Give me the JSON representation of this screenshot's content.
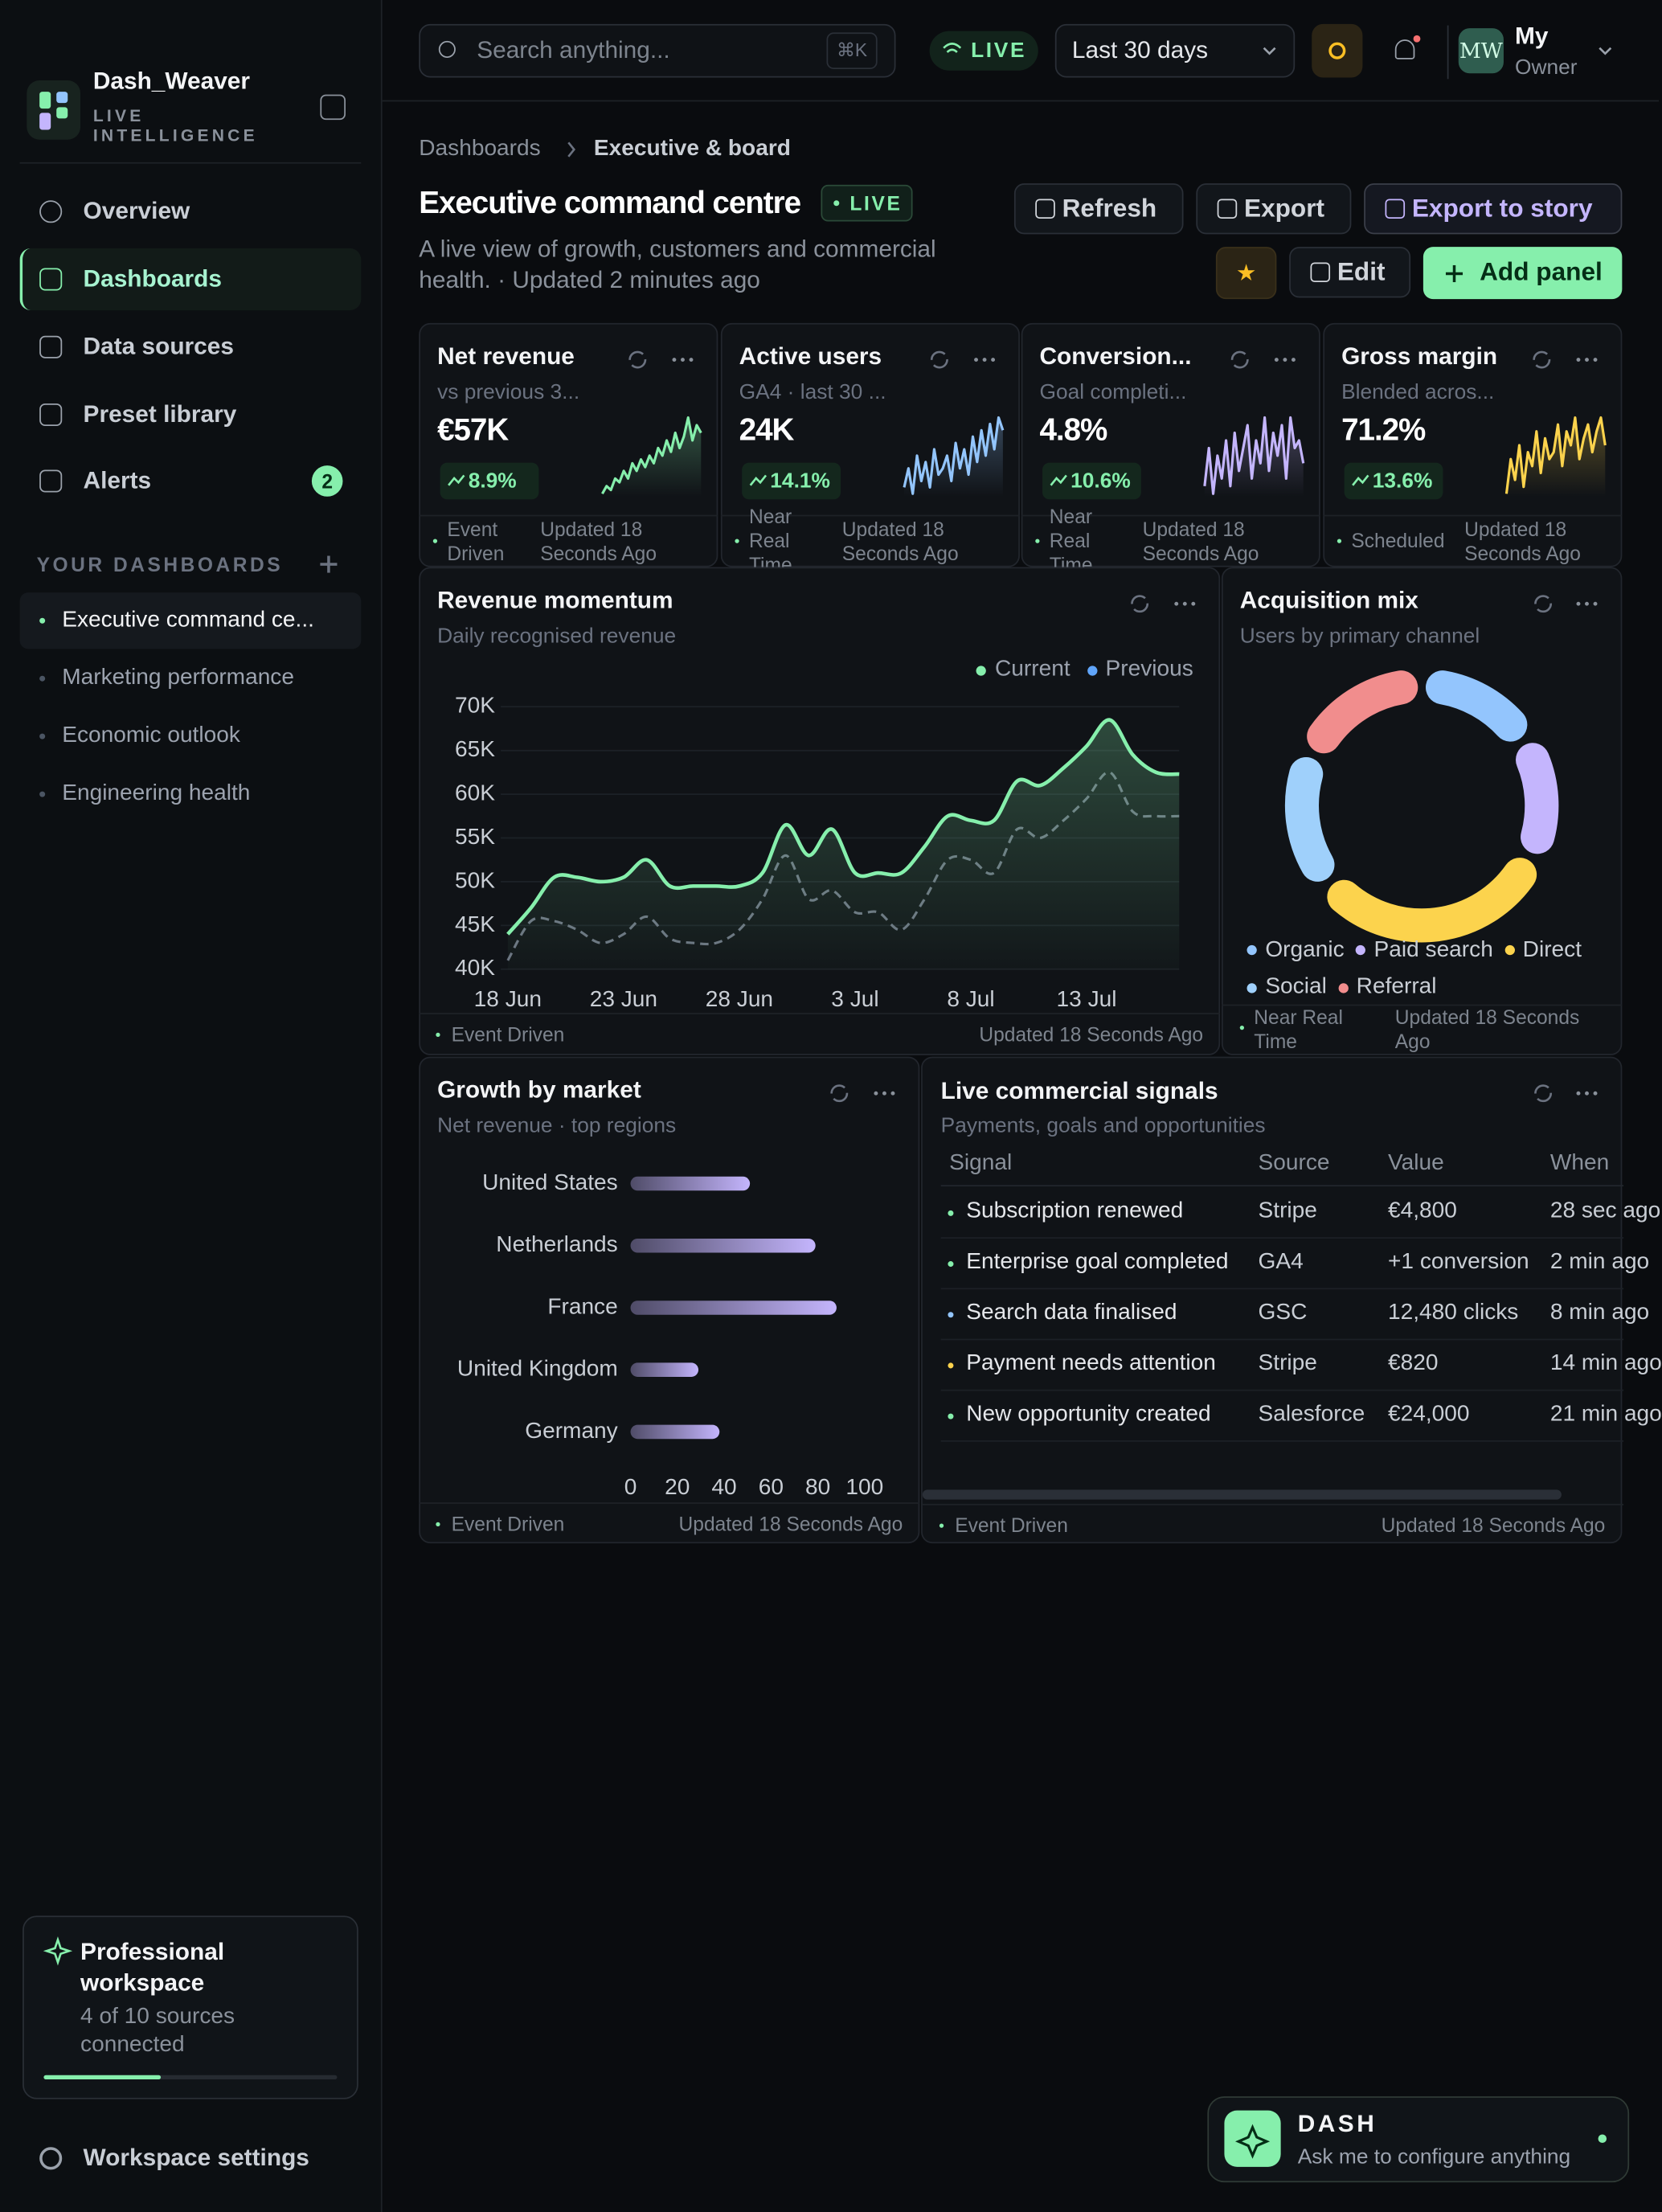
{
  "sidebar": {
    "brand": {
      "name": "Dash_Weaver",
      "tagline": "LIVE INTELLIGENCE"
    },
    "nav": [
      {
        "label": "Overview"
      },
      {
        "label": "Dashboards",
        "active": true
      },
      {
        "label": "Data sources"
      },
      {
        "label": "Preset library"
      },
      {
        "label": "Alerts",
        "badge": 2
      }
    ],
    "section_title": "YOUR DASHBOARDS",
    "dashboards": [
      {
        "label": "Executive command ce...",
        "active": true
      },
      {
        "label": "Marketing performance"
      },
      {
        "label": "Economic outlook"
      },
      {
        "label": "Engineering health"
      }
    ],
    "workspace": {
      "title": "Professional workspace",
      "subtitle": "4 of 10 sources connected"
    },
    "settings": "Workspace settings"
  },
  "topbar": {
    "search": "Search anything...",
    "shortcut": "⌘K",
    "status": "LIVE",
    "range": "Last 30 days",
    "user": {
      "initials": "MW",
      "name": "My",
      "role": "Owner"
    }
  },
  "header": {
    "breadcrumb": [
      "Dashboards",
      "Executive & board"
    ],
    "title": "Executive command centre",
    "status": "LIVE",
    "description": "A live view of growth, customers and commercial health. · Updated 2 minutes ago",
    "actions": {
      "refresh": "Refresh",
      "export": "Export",
      "story": "Export to story",
      "edit": "Edit",
      "add": "Add panel"
    }
  },
  "kpis": [
    {
      "title": "Net revenue",
      "subtitle": "vs previous 3...",
      "value": "€57K",
      "change": "8.9%",
      "source": "Event Driven",
      "updated": "Updated 18 Seconds Ago",
      "color": "#86efac",
      "trend": [
        2,
        3,
        2.5,
        4,
        3.5,
        5,
        4,
        6,
        5,
        6.5,
        5.5,
        7,
        6,
        8,
        7,
        9,
        7.5,
        10,
        8,
        9.5,
        12,
        9,
        11,
        10
      ]
    },
    {
      "title": "Active users",
      "subtitle": "GA4 · last 30 ...",
      "value": "24K",
      "change": "14.1%",
      "source": "Near Real Time",
      "updated": "Updated 18 Seconds Ago",
      "color": "#93c5fd",
      "trend": [
        3,
        6,
        2,
        8,
        4,
        7,
        3,
        9,
        5,
        6,
        8,
        4,
        10,
        6,
        9,
        5,
        11,
        7,
        12,
        8,
        13,
        9,
        14,
        12
      ]
    },
    {
      "title": "Conversion...",
      "subtitle": "Goal completi...",
      "value": "4.8%",
      "change": "10.6%",
      "source": "Near Real Time",
      "updated": "Updated 18 Seconds Ago",
      "color": "#c4b5fd",
      "trend": [
        4,
        9,
        3,
        8,
        5,
        10,
        4,
        11,
        6,
        9,
        12,
        5,
        10,
        7,
        13,
        6,
        11,
        8,
        12,
        5,
        13,
        9,
        10,
        7
      ]
    },
    {
      "title": "Gross margin",
      "subtitle": "Blended acros...",
      "value": "71.2%",
      "change": "13.6%",
      "source": "Scheduled",
      "updated": "Updated 18 Seconds Ago",
      "color": "#fcd34d",
      "trend": [
        3,
        8,
        5,
        10,
        4,
        9,
        7,
        12,
        6,
        11,
        8,
        9,
        13,
        7,
        12,
        10,
        14,
        8,
        11,
        13,
        9,
        12,
        14,
        10
      ]
    }
  ],
  "chart_data": [
    {
      "type": "line",
      "title": "Revenue momentum",
      "subtitle": "Daily recognised revenue",
      "categories": [
        "18 Jun",
        null,
        null,
        null,
        null,
        "23 Jun",
        null,
        null,
        null,
        null,
        "28 Jun",
        null,
        null,
        null,
        null,
        "3 Jul",
        null,
        null,
        null,
        null,
        "8 Jul",
        null,
        null,
        null,
        null,
        "13 Jul",
        null,
        null,
        null,
        null
      ],
      "series": [
        {
          "name": "Current",
          "color": "#86efac",
          "values": [
            44000,
            47000,
            50500,
            50500,
            50000,
            50500,
            52500,
            49500,
            49500,
            49500,
            49500,
            51000,
            56500,
            53000,
            56000,
            51000,
            51000,
            51000,
            54000,
            57500,
            57000,
            57000,
            61500,
            61000,
            63000,
            65500,
            68500,
            64500,
            62500,
            62300
          ]
        },
        {
          "name": "Previous",
          "color": "#60a5fa",
          "line_color": "#6b7280",
          "dashed": true,
          "values": [
            41000,
            45500,
            45500,
            44500,
            43000,
            44000,
            46000,
            43500,
            43000,
            43000,
            44500,
            48000,
            53000,
            48000,
            49000,
            46500,
            46500,
            44500,
            48000,
            52500,
            52500,
            51000,
            56000,
            55000,
            57000,
            59500,
            62500,
            58000,
            57500,
            57500
          ]
        }
      ],
      "ylim": [
        40000,
        70000
      ],
      "yticks": [
        {
          "value": 40000,
          "label": "40K"
        },
        {
          "value": 45000,
          "label": "45K"
        },
        {
          "value": 50000,
          "label": "50K"
        },
        {
          "value": 55000,
          "label": "55K"
        },
        {
          "value": 60000,
          "label": "60K"
        },
        {
          "value": 65000,
          "label": "65K"
        },
        {
          "value": 70000,
          "label": "70K"
        }
      ],
      "grid": true,
      "legend": "top-right",
      "source": "Event Driven",
      "updated": "Updated 18 Seconds Ago"
    },
    {
      "type": "pie",
      "donut": true,
      "title": "Acquisition mix",
      "subtitle": "Users by primary channel",
      "categories": [
        "Organic",
        "Paid search",
        "Direct",
        "Social",
        "Referral"
      ],
      "values": [
        16,
        16,
        32,
        18,
        18
      ],
      "colors": [
        "#93c5fd",
        "#c4b5fd",
        "#fcd34d",
        "#9fd0fb",
        "#f18d8d"
      ],
      "source": "Near Real Time",
      "updated": "Updated 18 Seconds Ago"
    },
    {
      "type": "bar",
      "orientation": "horizontal",
      "title": "Growth by market",
      "subtitle": "Net revenue · top regions",
      "categories": [
        "United States",
        "Netherlands",
        "France",
        "United Kingdom",
        "Germany"
      ],
      "values": [
        51,
        79,
        88,
        29,
        38
      ],
      "color": "#c4b5fd",
      "xlim": [
        0,
        100
      ],
      "xticks": [
        0,
        20,
        40,
        60,
        80,
        100
      ],
      "source": "Event Driven",
      "updated": "Updated 18 Seconds Ago"
    }
  ],
  "signals": {
    "title": "Live commercial signals",
    "subtitle": "Payments, goals and opportunities",
    "columns": [
      "Signal",
      "Source",
      "Value",
      "When"
    ],
    "rows": [
      [
        "Subscription renewed",
        "Stripe",
        "€4,800",
        "28 sec ago"
      ],
      [
        "Enterprise goal completed",
        "GA4",
        "+1 conversion",
        "2 min ago"
      ],
      [
        "Search data finalised",
        "GSC",
        "12,480 clicks",
        "8 min ago"
      ],
      [
        "Payment needs attention",
        "Stripe",
        "€820",
        "14 min ago"
      ],
      [
        "New opportunity created",
        "Salesforce",
        "€24,000",
        "21 min ago"
      ]
    ],
    "row_colors": [
      "#86efac",
      "#86efac",
      "#93c5fd",
      "#fcd34d",
      "#86efac"
    ],
    "source": "Event Driven",
    "updated": "Updated 18 Seconds Ago"
  },
  "assistant": {
    "name": "DASH",
    "prompt": "Ask me to configure anything"
  }
}
